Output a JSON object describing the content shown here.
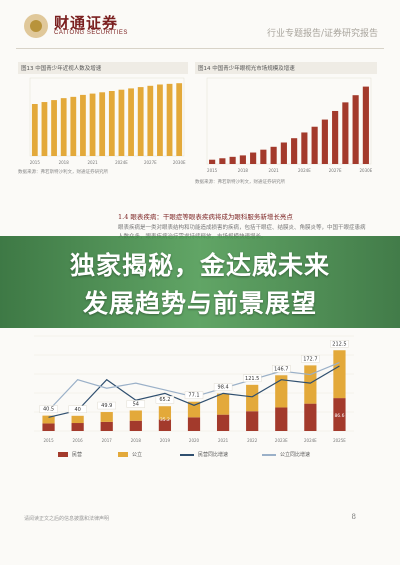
{
  "header": {
    "brand_cn": "财通证券",
    "brand_en": "CAITONG SECURITIES",
    "report_tag": "行业专题报告/证券研究报告"
  },
  "figures": {
    "fig13_title": "图13 中国青少年近视人数及增速",
    "fig14_title": "图14 中国青少年眼视光市场规模及增速",
    "fig13_source": "数据来源：弗若斯特沙利文，财通证券研究所",
    "fig14_source": "数据来源：弗若斯特沙利文，财通证券研究所"
  },
  "section": {
    "heading": "1.4 眼表疾病：干眼症等眼表疾病将成为眼科服务新增长亮点",
    "body": "眼表疾病是一类对眼表结构和功能造成损害的疾病，包括干眼症、结膜炎、角膜炎等，中国干眼症患病人数众多，眼表疾病治疗需求持续释放，市场规模快速增长。"
  },
  "banner": {
    "line1": "独家揭秘，金达威未来",
    "line2": "发展趋势与前景展望"
  },
  "legend": {
    "series1": "民营",
    "series2": "公立",
    "series3": "民营同比增速",
    "series4": "公立同比增速"
  },
  "footer": {
    "disclaimer": "请阅读正文之后的信息披露和法律声明",
    "page": "8"
  },
  "colors": {
    "private": "#a33a2c",
    "public": "#e3a93a",
    "line_dark": "#2f4f6f",
    "line_light": "#9ab0c8",
    "banner": "#3f8c48",
    "brand": "#7a1f1f"
  },
  "chart_data": [
    {
      "type": "bar",
      "title": "图13 中国青少年近视人数及增速",
      "categories": [
        "2015",
        "2016",
        "2017",
        "2018",
        "2019",
        "2020",
        "2021",
        "2022",
        "2023E",
        "2024E",
        "2025E",
        "2026E",
        "2027E",
        "2028E",
        "2029E",
        "2030E"
      ],
      "values": [
        80,
        83,
        86,
        89,
        91,
        94,
        96,
        98,
        100,
        102,
        104,
        106,
        108,
        110,
        111,
        112
      ],
      "ylim": [
        0,
        120
      ]
    },
    {
      "type": "bar",
      "title": "图14 中国青少年眼视光市场规模及增速",
      "categories": [
        "2015",
        "2016",
        "2017",
        "2018",
        "2019",
        "2020",
        "2021",
        "2022",
        "2023E",
        "2024E",
        "2025E",
        "2026E",
        "2027E",
        "2028E",
        "2029E",
        "2030E"
      ],
      "values": [
        3,
        4,
        5,
        6,
        8,
        10,
        12,
        15,
        18,
        22,
        26,
        31,
        37,
        43,
        48,
        54
      ],
      "ylim": [
        0,
        60
      ]
    },
    {
      "type": "bar",
      "categories": [
        "2015",
        "2016",
        "2017",
        "2018",
        "2019",
        "2020",
        "2021",
        "2022",
        "2023E",
        "2024E",
        "2025E"
      ],
      "series": [
        {
          "name": "民营",
          "values": [
            20.0,
            21.0,
            24.0,
            27.0,
            30.0,
            36.0,
            43.0,
            52.0,
            62.0,
            72.0,
            86.6
          ]
        },
        {
          "name": "公立",
          "values": [
            20.5,
            19.0,
            25.9,
            27.0,
            35.2,
            41.1,
            55.4,
            69.5,
            84.7,
            100.7,
            125.9
          ]
        }
      ],
      "data_labels": [
        "40.5",
        "40",
        "49.9",
        "54",
        "65.2",
        "77.1",
        "98.4",
        "121.5",
        "146.7",
        "172.7",
        "212.5",
        "86.6",
        "35.2"
      ],
      "line_series": [
        {
          "name": "民营同比增速",
          "values": [
            0.08,
            0.12,
            0.3,
            0.18,
            0.22,
            0.15,
            0.22,
            0.2,
            0.3,
            0.28,
            0.38
          ]
        },
        {
          "name": "公立同比增速",
          "values": [
            0.12,
            0.3,
            0.25,
            0.28,
            0.24,
            0.2,
            0.25,
            0.3,
            0.35,
            0.33,
            0.4
          ]
        }
      ],
      "ylim": [
        0,
        250
      ]
    }
  ]
}
